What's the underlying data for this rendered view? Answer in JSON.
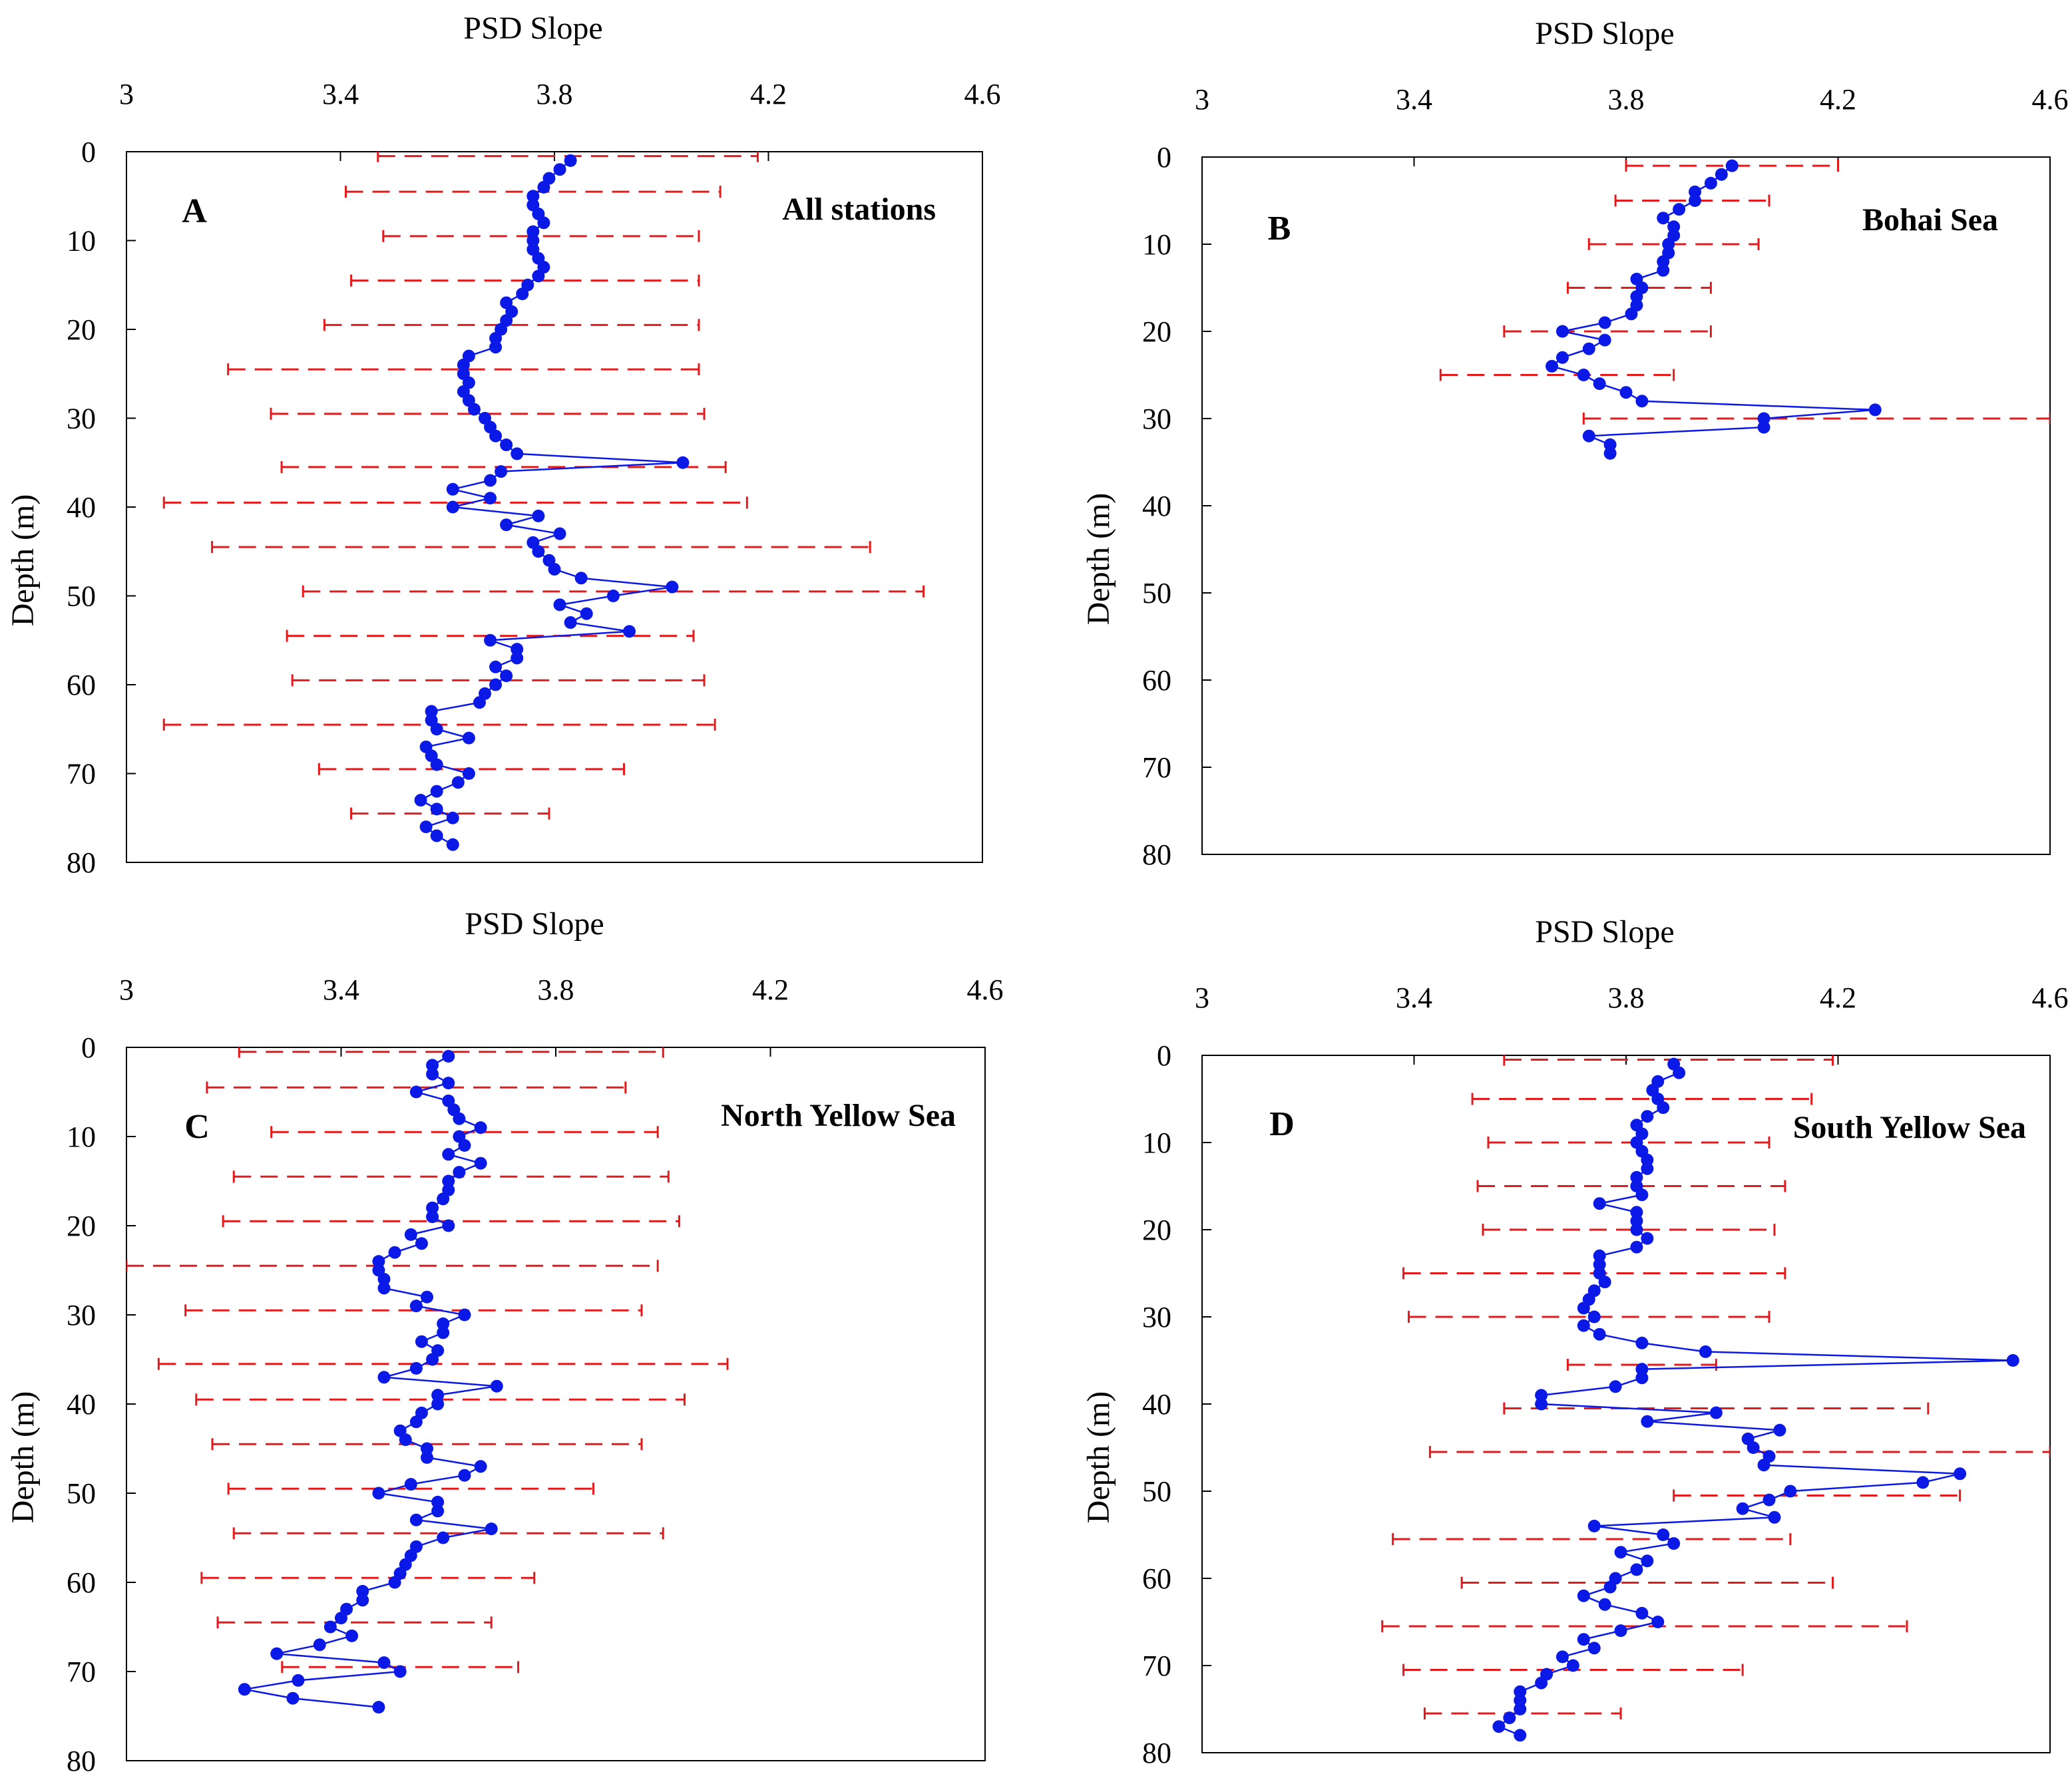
{
  "figure": {
    "colors": {
      "profile": "#0a19e6",
      "error_bars": "#e31a1c",
      "axes": "#000000"
    }
  },
  "chart_data": [
    {
      "type": "scatter",
      "letter": "A",
      "title": "All stations",
      "xlabel": "PSD Slope",
      "ylabel": "Depth (m)",
      "xlim": [
        3,
        4.6
      ],
      "ylim": [
        0,
        80
      ],
      "xticks": [
        "3",
        "3.4",
        "3.8",
        "4.2",
        "4.6"
      ],
      "yticks": [
        "0",
        "10",
        "20",
        "30",
        "40",
        "50",
        "60",
        "70",
        "80"
      ],
      "profile": {
        "depth": [
          1,
          2,
          3,
          4,
          5,
          6,
          7,
          8,
          9,
          10,
          11,
          12,
          13,
          14,
          15,
          16,
          17,
          18,
          19,
          20,
          21,
          22,
          23,
          24,
          25,
          26,
          27,
          28,
          29,
          30,
          31,
          32,
          33,
          34,
          35,
          36,
          37,
          38,
          39,
          40,
          41,
          42,
          43,
          44,
          45,
          46,
          47,
          48,
          49,
          50,
          51,
          52,
          53,
          54,
          55,
          56,
          57,
          58,
          59,
          60,
          61,
          62,
          63,
          64,
          65,
          66,
          67,
          68,
          69,
          70,
          71,
          72,
          73,
          74,
          75,
          76,
          77,
          78
        ],
        "slope": [
          3.83,
          3.81,
          3.79,
          3.78,
          3.76,
          3.76,
          3.77,
          3.78,
          3.76,
          3.76,
          3.76,
          3.77,
          3.78,
          3.77,
          3.75,
          3.74,
          3.71,
          3.72,
          3.71,
          3.7,
          3.69,
          3.69,
          3.64,
          3.63,
          3.63,
          3.64,
          3.63,
          3.64,
          3.65,
          3.67,
          3.68,
          3.69,
          3.71,
          3.73,
          4.04,
          3.7,
          3.68,
          3.61,
          3.68,
          3.61,
          3.77,
          3.71,
          3.81,
          3.76,
          3.77,
          3.79,
          3.8,
          3.85,
          4.02,
          3.91,
          3.81,
          3.86,
          3.83,
          3.94,
          3.68,
          3.73,
          3.73,
          3.69,
          3.71,
          3.69,
          3.67,
          3.66,
          3.57,
          3.57,
          3.58,
          3.64,
          3.56,
          3.57,
          3.58,
          3.64,
          3.62,
          3.58,
          3.55,
          3.58,
          3.61,
          3.56,
          3.58,
          3.61
        ]
      },
      "error_bars": [
        {
          "depth": 0.5,
          "low": 3.47,
          "high": 4.18
        },
        {
          "depth": 4.5,
          "low": 3.41,
          "high": 4.11
        },
        {
          "depth": 9.5,
          "low": 3.48,
          "high": 4.07
        },
        {
          "depth": 14.5,
          "low": 3.42,
          "high": 4.07
        },
        {
          "depth": 19.5,
          "low": 3.37,
          "high": 4.07
        },
        {
          "depth": 24.5,
          "low": 3.19,
          "high": 4.07
        },
        {
          "depth": 29.5,
          "low": 3.27,
          "high": 4.08
        },
        {
          "depth": 35.5,
          "low": 3.29,
          "high": 4.12
        },
        {
          "depth": 39.5,
          "low": 3.07,
          "high": 4.16
        },
        {
          "depth": 44.5,
          "low": 3.16,
          "high": 4.39
        },
        {
          "depth": 49.5,
          "low": 3.33,
          "high": 4.49
        },
        {
          "depth": 54.5,
          "low": 3.3,
          "high": 4.06
        },
        {
          "depth": 59.5,
          "low": 3.31,
          "high": 4.08
        },
        {
          "depth": 64.5,
          "low": 3.07,
          "high": 4.1
        },
        {
          "depth": 69.5,
          "low": 3.36,
          "high": 3.93
        },
        {
          "depth": 74.5,
          "low": 3.42,
          "high": 3.79
        }
      ]
    },
    {
      "type": "scatter",
      "letter": "B",
      "title": "Bohai Sea",
      "xlabel": "PSD Slope",
      "ylabel": "Depth (m)",
      "xlim": [
        3,
        4.6
      ],
      "ylim": [
        0,
        80
      ],
      "xticks": [
        "3",
        "3.4",
        "3.8",
        "4.2",
        "4.6"
      ],
      "yticks": [
        "0",
        "10",
        "20",
        "30",
        "40",
        "50",
        "60",
        "70",
        "80"
      ],
      "profile": {
        "depth": [
          1,
          2,
          3,
          4,
          5,
          6,
          7,
          8,
          9,
          10,
          11,
          12,
          13,
          14,
          15,
          16,
          17,
          18,
          19,
          20,
          21,
          22,
          23,
          24,
          25,
          26,
          27,
          28,
          29,
          30,
          31,
          32,
          33,
          34
        ],
        "slope": [
          4.0,
          3.98,
          3.96,
          3.93,
          3.93,
          3.9,
          3.87,
          3.89,
          3.89,
          3.88,
          3.88,
          3.87,
          3.87,
          3.82,
          3.83,
          3.82,
          3.82,
          3.81,
          3.76,
          3.68,
          3.76,
          3.73,
          3.68,
          3.66,
          3.72,
          3.75,
          3.8,
          3.83,
          4.27,
          4.06,
          4.06,
          3.73,
          3.77,
          3.77
        ]
      },
      "error_bars": [
        {
          "depth": 1,
          "low": 3.8,
          "high": 4.2
        },
        {
          "depth": 5,
          "low": 3.78,
          "high": 4.07
        },
        {
          "depth": 10,
          "low": 3.73,
          "high": 4.05
        },
        {
          "depth": 15,
          "low": 3.69,
          "high": 3.96
        },
        {
          "depth": 20,
          "low": 3.57,
          "high": 3.96
        },
        {
          "depth": 25,
          "low": 3.45,
          "high": 3.89
        },
        {
          "depth": 30,
          "low": 3.72,
          "high": 4.6
        }
      ]
    },
    {
      "type": "scatter",
      "letter": "C",
      "title": "North Yellow Sea",
      "xlabel": "PSD Slope",
      "ylabel": "Depth (m)",
      "xlim": [
        3,
        4.6
      ],
      "ylim": [
        0,
        80
      ],
      "xticks": [
        "3",
        "3.4",
        "3.8",
        "4.2",
        "4.6"
      ],
      "yticks": [
        "0",
        "10",
        "20",
        "30",
        "40",
        "50",
        "60",
        "70",
        "80"
      ],
      "profile": {
        "depth": [
          1,
          2,
          3,
          4,
          5,
          6,
          7,
          8,
          9,
          10,
          11,
          12,
          13,
          14,
          15,
          16,
          17,
          18,
          19,
          20,
          21,
          22,
          23,
          24,
          25,
          26,
          27,
          28,
          29,
          30,
          31,
          32,
          33,
          34,
          35,
          36,
          37,
          38,
          39,
          40,
          41,
          42,
          43,
          44,
          45,
          46,
          47,
          48,
          49,
          50,
          51,
          52,
          53,
          54,
          55,
          56,
          57,
          58,
          59,
          60,
          61,
          62,
          63,
          64,
          65,
          66,
          67,
          68,
          69,
          70,
          71,
          72,
          73,
          74
        ],
        "slope": [
          3.6,
          3.57,
          3.57,
          3.6,
          3.54,
          3.6,
          3.61,
          3.62,
          3.66,
          3.62,
          3.63,
          3.6,
          3.66,
          3.62,
          3.6,
          3.6,
          3.59,
          3.57,
          3.57,
          3.6,
          3.53,
          3.55,
          3.5,
          3.47,
          3.47,
          3.48,
          3.48,
          3.56,
          3.54,
          3.63,
          3.59,
          3.59,
          3.55,
          3.58,
          3.57,
          3.54,
          3.48,
          3.69,
          3.58,
          3.58,
          3.55,
          3.54,
          3.51,
          3.52,
          3.56,
          3.56,
          3.66,
          3.63,
          3.53,
          3.47,
          3.58,
          3.58,
          3.54,
          3.68,
          3.59,
          3.54,
          3.53,
          3.52,
          3.51,
          3.5,
          3.44,
          3.44,
          3.41,
          3.4,
          3.38,
          3.42,
          3.36,
          3.28,
          3.48,
          3.51,
          3.32,
          3.22,
          3.31,
          3.47
        ]
      },
      "error_bars": [
        {
          "depth": 0.5,
          "low": 3.21,
          "high": 4.0
        },
        {
          "depth": 4.5,
          "low": 3.15,
          "high": 3.93
        },
        {
          "depth": 9.5,
          "low": 3.27,
          "high": 3.99
        },
        {
          "depth": 14.5,
          "low": 3.2,
          "high": 4.01
        },
        {
          "depth": 19.5,
          "low": 3.18,
          "high": 4.03
        },
        {
          "depth": 24.5,
          "low": 3.0,
          "high": 3.99
        },
        {
          "depth": 29.5,
          "low": 3.11,
          "high": 3.96
        },
        {
          "depth": 35.5,
          "low": 3.06,
          "high": 4.12
        },
        {
          "depth": 39.5,
          "low": 3.13,
          "high": 4.04
        },
        {
          "depth": 44.5,
          "low": 3.16,
          "high": 3.96
        },
        {
          "depth": 49.5,
          "low": 3.19,
          "high": 3.87
        },
        {
          "depth": 54.5,
          "low": 3.2,
          "high": 4.0
        },
        {
          "depth": 59.5,
          "low": 3.14,
          "high": 3.76
        },
        {
          "depth": 64.5,
          "low": 3.17,
          "high": 3.68
        },
        {
          "depth": 69.5,
          "low": 3.29,
          "high": 3.73
        }
      ]
    },
    {
      "type": "scatter",
      "letter": "D",
      "title": "South Yellow Sea",
      "xlabel": "PSD Slope",
      "ylabel": "Depth (m)",
      "xlim": [
        3,
        4.6
      ],
      "ylim": [
        0,
        80
      ],
      "xticks": [
        "3",
        "3.4",
        "3.8",
        "4.2",
        "4.6"
      ],
      "yticks": [
        "0",
        "10",
        "20",
        "30",
        "40",
        "50",
        "60",
        "70",
        "80"
      ],
      "profile": {
        "depth": [
          1,
          2,
          3,
          4,
          5,
          6,
          7,
          8,
          9,
          10,
          11,
          12,
          13,
          14,
          15,
          16,
          17,
          18,
          19,
          20,
          21,
          22,
          23,
          24,
          25,
          26,
          27,
          28,
          29,
          30,
          31,
          32,
          33,
          34,
          35,
          36,
          37,
          38,
          39,
          40,
          41,
          42,
          43,
          44,
          45,
          46,
          47,
          48,
          49,
          50,
          51,
          52,
          53,
          54,
          55,
          56,
          57,
          58,
          59,
          60,
          61,
          62,
          63,
          64,
          65,
          66,
          67,
          68,
          69,
          70,
          71,
          72,
          73,
          74,
          75,
          76,
          77,
          78
        ],
        "slope": [
          3.89,
          3.9,
          3.86,
          3.85,
          3.86,
          3.87,
          3.84,
          3.82,
          3.83,
          3.82,
          3.83,
          3.84,
          3.84,
          3.82,
          3.82,
          3.83,
          3.75,
          3.82,
          3.82,
          3.82,
          3.84,
          3.82,
          3.75,
          3.75,
          3.75,
          3.76,
          3.74,
          3.73,
          3.72,
          3.74,
          3.72,
          3.75,
          3.83,
          3.95,
          4.53,
          3.83,
          3.83,
          3.78,
          3.64,
          3.64,
          3.97,
          3.84,
          4.09,
          4.03,
          4.04,
          4.07,
          4.06,
          4.43,
          4.36,
          4.11,
          4.07,
          4.02,
          4.08,
          3.74,
          3.87,
          3.89,
          3.79,
          3.84,
          3.82,
          3.78,
          3.77,
          3.72,
          3.76,
          3.83,
          3.86,
          3.79,
          3.72,
          3.74,
          3.68,
          3.7,
          3.65,
          3.64,
          3.6,
          3.6,
          3.6,
          3.58,
          3.56,
          3.6
        ]
      },
      "error_bars": [
        {
          "depth": 0.5,
          "low": 3.57,
          "high": 4.19
        },
        {
          "depth": 5,
          "low": 3.51,
          "high": 4.15
        },
        {
          "depth": 10,
          "low": 3.54,
          "high": 4.07
        },
        {
          "depth": 15,
          "low": 3.52,
          "high": 4.1
        },
        {
          "depth": 20,
          "low": 3.53,
          "high": 4.08
        },
        {
          "depth": 25,
          "low": 3.38,
          "high": 4.1
        },
        {
          "depth": 30,
          "low": 3.39,
          "high": 4.07
        },
        {
          "depth": 35.5,
          "low": 3.69,
          "high": 3.97
        },
        {
          "depth": 40.5,
          "low": 3.57,
          "high": 4.37
        },
        {
          "depth": 45.5,
          "low": 3.43,
          "high": 4.6
        },
        {
          "depth": 50.5,
          "low": 3.89,
          "high": 4.43
        },
        {
          "depth": 55.5,
          "low": 3.36,
          "high": 4.11
        },
        {
          "depth": 60.5,
          "low": 3.49,
          "high": 4.19
        },
        {
          "depth": 65.5,
          "low": 3.34,
          "high": 4.33
        },
        {
          "depth": 70.5,
          "low": 3.38,
          "high": 4.02
        },
        {
          "depth": 75.5,
          "low": 3.42,
          "high": 3.79
        }
      ]
    }
  ]
}
